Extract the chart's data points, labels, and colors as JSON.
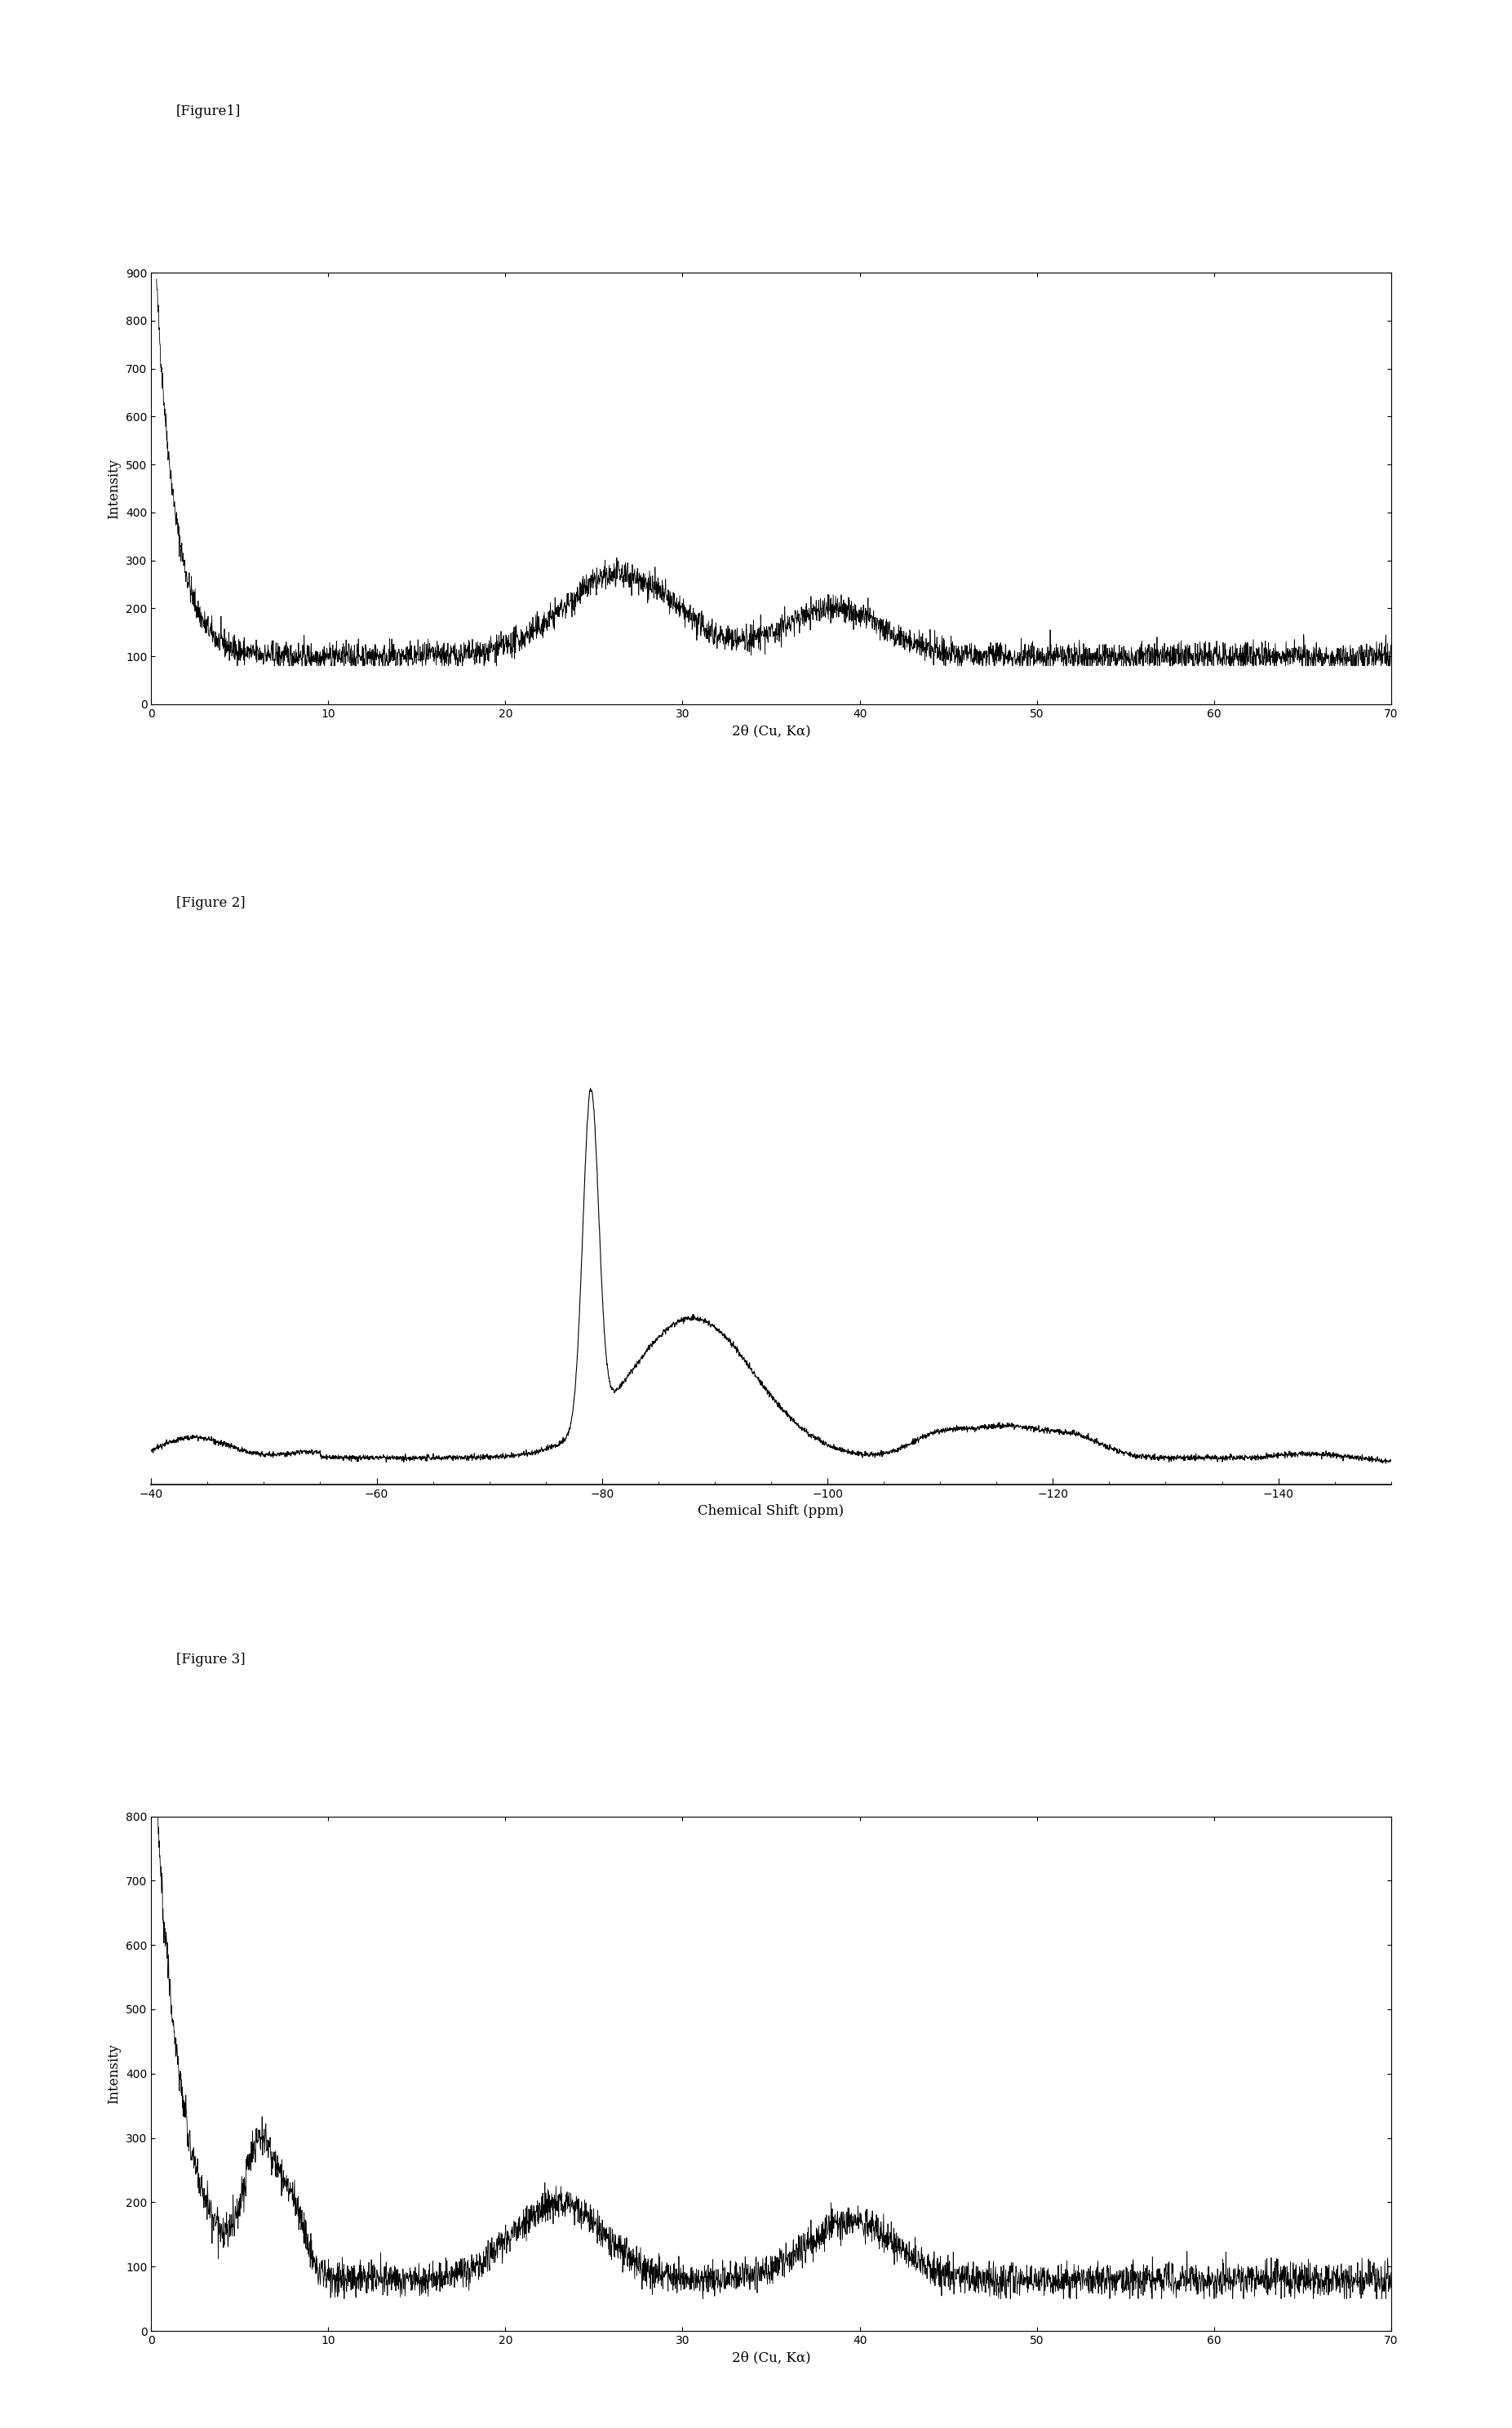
{
  "fig1_label": "[Figure1]",
  "fig2_label": "[Figure 2]",
  "fig3_label": "[Figure 3]",
  "fig1_xlabel": "2θ (Cu, Kα)",
  "fig1_ylabel": "Intensity",
  "fig1_xlim": [
    0,
    70
  ],
  "fig1_ylim": [
    0,
    900
  ],
  "fig1_xticks": [
    0,
    10,
    20,
    30,
    40,
    50,
    60,
    70
  ],
  "fig1_yticks": [
    0,
    100,
    200,
    300,
    400,
    500,
    600,
    700,
    800,
    900
  ],
  "fig2_xlabel": "Chemical Shift (ppm)",
  "fig2_xlim": [
    -40,
    -150
  ],
  "fig2_xticks": [
    -40,
    -60,
    -80,
    -100,
    -120,
    -140
  ],
  "fig3_xlabel": "2θ (Cu, Kα)",
  "fig3_ylabel": "Intensity",
  "fig3_xlim": [
    0,
    70
  ],
  "fig3_ylim": [
    0,
    800
  ],
  "fig3_xticks": [
    0,
    10,
    20,
    30,
    40,
    50,
    60,
    70
  ],
  "fig3_yticks": [
    0,
    100,
    200,
    300,
    400,
    500,
    600,
    700,
    800
  ],
  "line_color": "#000000",
  "bg_color": "#ffffff",
  "label_fontsize": 12,
  "tick_fontsize": 10,
  "figure_label_fontsize": 12
}
